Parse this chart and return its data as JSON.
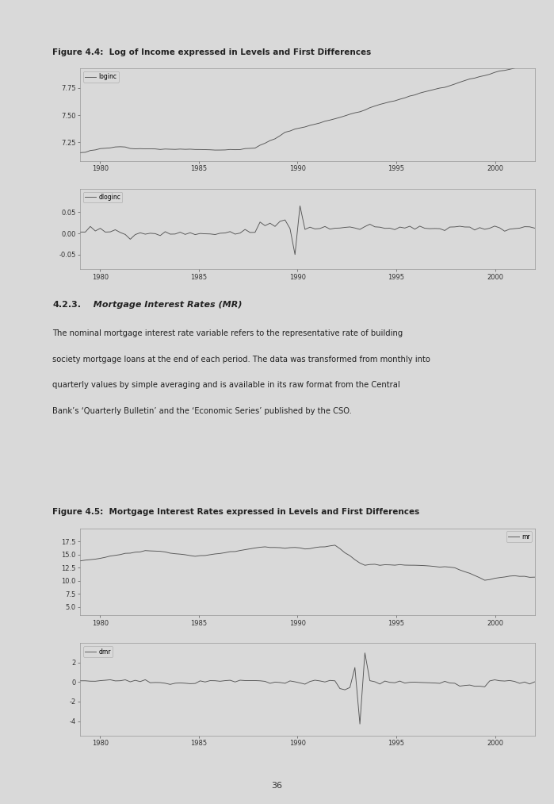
{
  "fig44_title": "Figure 4.4:  Log of Income expressed in Levels and First Differences",
  "fig45_title": "Figure 4.5:  Mortgage Interest Rates expressed in Levels and First Differences",
  "section_bold": "4.2.3.",
  "section_italic": "  Mortgage Interest Rates (MR)",
  "para_line1": "The nominal mortgage interest rate variable refers to the representative rate of building",
  "para_line2": "society mortgage loans at the end of each period. The data was transformed from monthly into",
  "para_line3": "quarterly values by simple averaging and is available in its raw format from the Central",
  "para_line4": "Bank’s ‘Quarterly Bulletin’ and the ‘Economic Series’ published by the CSO.",
  "page_number": "36",
  "bg_color": "#d9d9d9",
  "plot_bg": "#d9d9d9",
  "line_color": "#555555",
  "x_ticks": [
    1980,
    1985,
    1990,
    1995,
    2000
  ],
  "loginc_yticks": [
    7.25,
    7.5,
    7.75
  ],
  "dloginc_yticks": [
    -0.05,
    0.0,
    0.05
  ],
  "mr_yticks": [
    5.0,
    7.5,
    10.0,
    12.5,
    15.0,
    17.5
  ],
  "dmr_yticks": [
    -4,
    -2,
    0,
    2
  ]
}
